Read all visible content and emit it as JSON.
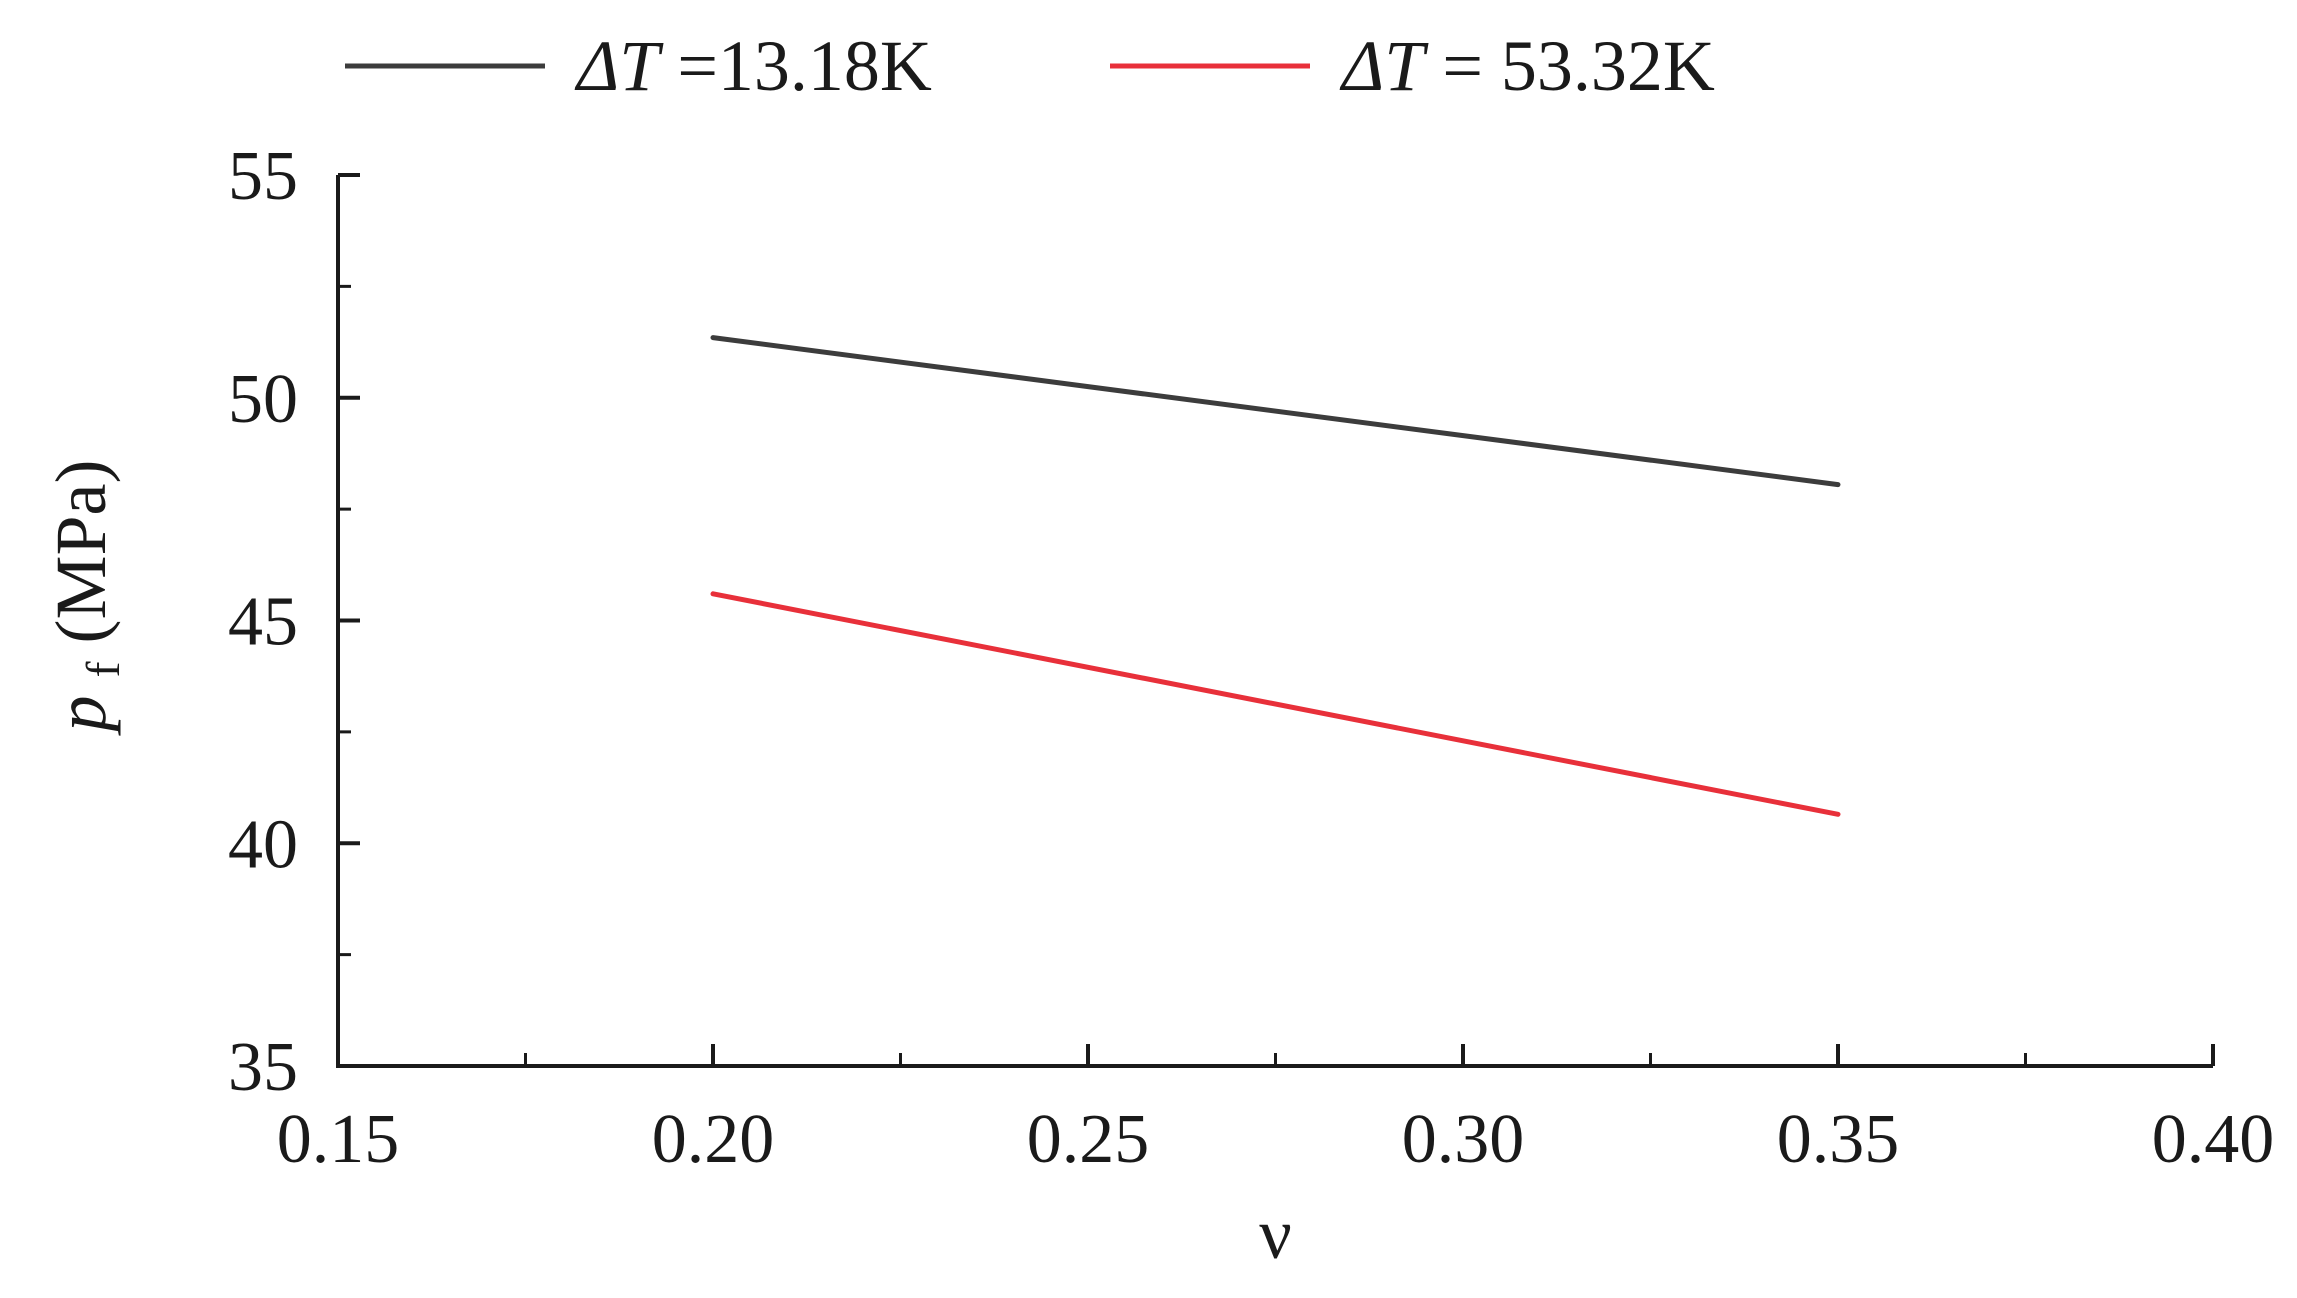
{
  "chart_data": {
    "type": "line",
    "xlabel": "ν",
    "ylabel": {
      "base": "p",
      "sub": "f",
      "unit": "(MPa)"
    },
    "xlim": [
      0.15,
      0.4
    ],
    "ylim": [
      35,
      55
    ],
    "xticks": [
      "0.15",
      "0.20",
      "0.25",
      "0.30",
      "0.35",
      "0.40"
    ],
    "yticks": [
      "35",
      "40",
      "45",
      "50",
      "55"
    ],
    "grid": false,
    "legend_position": "top",
    "series": [
      {
        "name": "ΔT =13.18K",
        "legend": {
          "symbol": "ΔT",
          "text": " =13.18K"
        },
        "color": "#3c3c3c",
        "x": [
          0.2,
          0.35
        ],
        "y": [
          51.35,
          48.05
        ]
      },
      {
        "name": "ΔT = 53.32K",
        "legend": {
          "symbol": "ΔT",
          "text": " = 53.32K"
        },
        "color": "#e8303a",
        "x": [
          0.2,
          0.35
        ],
        "y": [
          45.6,
          40.65
        ]
      }
    ]
  }
}
